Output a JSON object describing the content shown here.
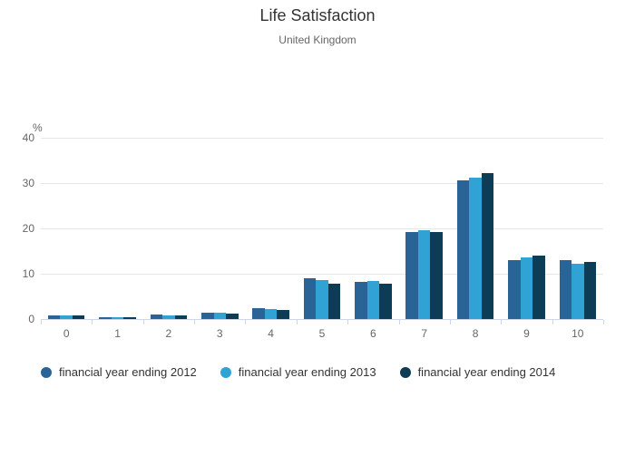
{
  "chart_data": {
    "type": "bar",
    "title": "Life Satisfaction",
    "subtitle": "United Kingdom",
    "ylabel": "%",
    "xlabel": "",
    "categories": [
      "0",
      "1",
      "2",
      "3",
      "4",
      "5",
      "6",
      "7",
      "8",
      "9",
      "10"
    ],
    "series": [
      {
        "name": "financial year ending 2012",
        "color": "#2a6496",
        "values": [
          0.9,
          0.4,
          1.0,
          1.5,
          2.5,
          9.0,
          8.2,
          19.2,
          30.7,
          13.0,
          13.0
        ]
      },
      {
        "name": "financial year ending 2013",
        "color": "#31a2d4",
        "values": [
          0.8,
          0.4,
          0.8,
          1.5,
          2.3,
          8.6,
          8.5,
          19.6,
          31.2,
          13.6,
          12.2
        ]
      },
      {
        "name": "financial year ending 2014",
        "color": "#0c3c56",
        "values": [
          0.8,
          0.4,
          0.8,
          1.2,
          2.0,
          7.8,
          7.8,
          19.3,
          32.3,
          14.0,
          12.6
        ]
      }
    ],
    "ylim": [
      0,
      40
    ],
    "yticks": [
      0,
      10,
      20,
      30,
      40
    ],
    "grid": true,
    "legend_position": "bottom-left"
  },
  "colors": {
    "background": "#ffffff",
    "grid": "#e6e6e6",
    "axis": "#ccd6eb",
    "tick_label": "#666666",
    "title": "#333333",
    "subtitle": "#666666",
    "legend_text": "#333333"
  }
}
